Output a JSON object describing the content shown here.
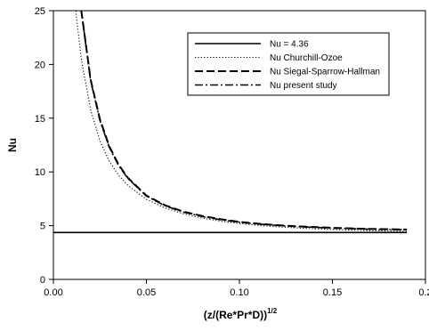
{
  "chart_data": {
    "type": "line",
    "xlabel": "(z/(Re*Pr*D))",
    "xlabel_sup": "1/2",
    "ylabel": "Nu",
    "xlim": [
      0.0,
      0.2
    ],
    "ylim": [
      0,
      25
    ],
    "xticks": [
      0.0,
      0.05,
      0.1,
      0.15,
      0.2
    ],
    "xtick_labels": [
      "0.00",
      "0.05",
      "0.10",
      "0.15",
      "0.2"
    ],
    "yticks": [
      0,
      5,
      10,
      15,
      20,
      25
    ],
    "ytick_labels": [
      "0",
      "5",
      "10",
      "15",
      "20",
      "25"
    ],
    "grid": false,
    "legend_position": "top-right",
    "colors": {
      "line": "#000000",
      "axis": "#000000"
    },
    "series": [
      {
        "name": "Nu = 4.36",
        "style": "solid",
        "x": [
          0.0,
          0.19
        ],
        "y": [
          4.36,
          4.36
        ]
      },
      {
        "name": "Nu Churchill-Ozoe",
        "style": "dotted",
        "x": [
          0.012,
          0.015,
          0.02,
          0.025,
          0.03,
          0.035,
          0.04,
          0.05,
          0.06,
          0.07,
          0.08,
          0.09,
          0.1,
          0.11,
          0.12,
          0.13,
          0.14,
          0.15,
          0.16,
          0.17,
          0.18,
          0.19
        ],
        "y": [
          25.0,
          20.5,
          15.8,
          12.9,
          11.0,
          9.7,
          8.75,
          7.45,
          6.65,
          6.1,
          5.7,
          5.42,
          5.2,
          5.03,
          4.9,
          4.8,
          4.71,
          4.64,
          4.58,
          4.53,
          4.49,
          4.46
        ]
      },
      {
        "name": "Nu Siegal-Sparrow-Hallman",
        "style": "dashed",
        "x": [
          0.015,
          0.02,
          0.025,
          0.03,
          0.035,
          0.04,
          0.05,
          0.06,
          0.07,
          0.08,
          0.09,
          0.1,
          0.11,
          0.12,
          0.13,
          0.14,
          0.15,
          0.16,
          0.17,
          0.18,
          0.19
        ],
        "y": [
          25.0,
          18.6,
          14.9,
          12.4,
          10.7,
          9.45,
          7.8,
          6.9,
          6.3,
          5.9,
          5.6,
          5.35,
          5.18,
          5.05,
          4.95,
          4.87,
          4.8,
          4.75,
          4.7,
          4.67,
          4.64
        ]
      },
      {
        "name": "Nu present study",
        "style": "dashdot",
        "x": [
          0.015,
          0.02,
          0.025,
          0.03,
          0.035,
          0.04,
          0.05,
          0.06,
          0.07,
          0.08,
          0.09,
          0.1,
          0.11,
          0.12,
          0.13,
          0.14,
          0.15,
          0.16,
          0.17,
          0.18,
          0.19
        ],
        "y": [
          25.0,
          18.5,
          14.8,
          12.3,
          10.6,
          9.4,
          7.75,
          6.85,
          6.25,
          5.85,
          5.55,
          5.32,
          5.15,
          5.02,
          4.92,
          4.84,
          4.77,
          4.72,
          4.67,
          4.64,
          4.61
        ]
      }
    ]
  }
}
